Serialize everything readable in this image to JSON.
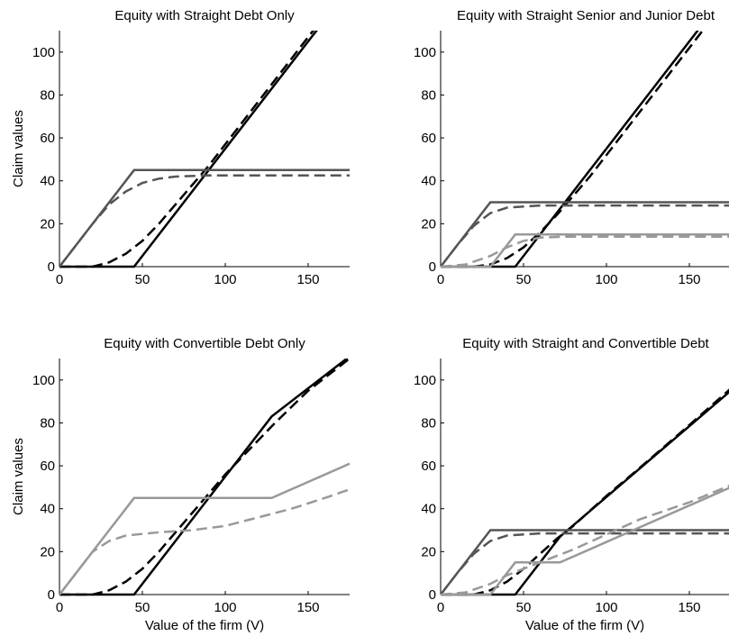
{
  "chart_data": [
    {
      "type": "line",
      "title": "Equity with Straight Debt Only",
      "xlabel": "",
      "ylabel": "Claim values",
      "xlim": [
        0,
        175
      ],
      "ylim": [
        0,
        110
      ],
      "xticks": [
        "0",
        "50",
        "100",
        "150"
      ],
      "yticks": [
        "0",
        "20",
        "40",
        "60",
        "80",
        "100"
      ],
      "series": [
        {
          "style": "solid",
          "color": "#000000",
          "points": [
            [
              0,
              0
            ],
            [
              45,
              0
            ],
            [
              175,
              130
            ]
          ]
        },
        {
          "style": "dashed",
          "color": "#000000",
          "points": [
            [
              0,
              0
            ],
            [
              20,
              0
            ],
            [
              30,
              2
            ],
            [
              40,
              6
            ],
            [
              50,
              12
            ],
            [
              60,
              20
            ],
            [
              70,
              29
            ],
            [
              80,
              38
            ],
            [
              90,
              47
            ],
            [
              100,
              57
            ],
            [
              110,
              67
            ],
            [
              120,
              77
            ],
            [
              140,
              97
            ],
            [
              150,
              107
            ],
            [
              175,
              132
            ]
          ]
        },
        {
          "style": "solid",
          "color": "#555555",
          "points": [
            [
              0,
              0
            ],
            [
              45,
              45
            ],
            [
              175,
              45
            ]
          ]
        },
        {
          "style": "dashed",
          "color": "#555555",
          "points": [
            [
              0,
              0
            ],
            [
              10,
              10
            ],
            [
              20,
              20
            ],
            [
              30,
              29
            ],
            [
              40,
              35
            ],
            [
              50,
              39
            ],
            [
              60,
              41
            ],
            [
              70,
              42
            ],
            [
              90,
              42.5
            ],
            [
              175,
              42.5
            ]
          ]
        }
      ]
    },
    {
      "type": "line",
      "title": "Equity with Straight Senior and Junior Debt",
      "xlabel": "",
      "ylabel": "",
      "xlim": [
        0,
        175
      ],
      "ylim": [
        0,
        110
      ],
      "xticks": [
        "0",
        "50",
        "100",
        "150"
      ],
      "yticks": [
        "0",
        "20",
        "40",
        "60",
        "80",
        "100"
      ],
      "series": [
        {
          "style": "solid",
          "color": "#000000",
          "points": [
            [
              0,
              0
            ],
            [
              45,
              0
            ],
            [
              175,
              130
            ]
          ]
        },
        {
          "style": "dashed",
          "color": "#000000",
          "points": [
            [
              0,
              0
            ],
            [
              20,
              0
            ],
            [
              30,
              1
            ],
            [
              40,
              4
            ],
            [
              50,
              9
            ],
            [
              60,
              16
            ],
            [
              70,
              24
            ],
            [
              80,
              33
            ],
            [
              90,
              42
            ],
            [
              100,
              52
            ],
            [
              120,
              72
            ],
            [
              150,
              102
            ],
            [
              175,
              127
            ]
          ]
        },
        {
          "style": "solid",
          "color": "#555555",
          "points": [
            [
              0,
              0
            ],
            [
              30,
              30
            ],
            [
              175,
              30
            ]
          ]
        },
        {
          "style": "dashed",
          "color": "#555555",
          "points": [
            [
              0,
              0
            ],
            [
              10,
              10
            ],
            [
              20,
              19
            ],
            [
              30,
              25
            ],
            [
              40,
              27.5
            ],
            [
              60,
              28.5
            ],
            [
              175,
              28.5
            ]
          ]
        },
        {
          "style": "solid",
          "color": "#999999",
          "points": [
            [
              0,
              0
            ],
            [
              30,
              0
            ],
            [
              45,
              15
            ],
            [
              175,
              15
            ]
          ]
        },
        {
          "style": "dashed",
          "color": "#999999",
          "points": [
            [
              0,
              0
            ],
            [
              15,
              1
            ],
            [
              30,
              5
            ],
            [
              40,
              9
            ],
            [
              50,
              12
            ],
            [
              60,
              13.5
            ],
            [
              75,
              14
            ],
            [
              175,
              14
            ]
          ]
        }
      ]
    },
    {
      "type": "line",
      "title": "Equity with Convertible Debt Only",
      "xlabel": "Value of the firm (V)",
      "ylabel": "Claim values",
      "xlim": [
        0,
        175
      ],
      "ylim": [
        0,
        110
      ],
      "xticks": [
        "0",
        "50",
        "100",
        "150"
      ],
      "yticks": [
        "0",
        "20",
        "40",
        "60",
        "80",
        "100"
      ],
      "series": [
        {
          "style": "solid",
          "color": "#000000",
          "points": [
            [
              0,
              0
            ],
            [
              45,
              0
            ],
            [
              128,
              83
            ],
            [
              175,
              111
            ]
          ]
        },
        {
          "style": "dashed",
          "color": "#000000",
          "points": [
            [
              0,
              0
            ],
            [
              20,
              0
            ],
            [
              30,
              2
            ],
            [
              40,
              6
            ],
            [
              50,
              12
            ],
            [
              60,
              20
            ],
            [
              70,
              29
            ],
            [
              80,
              38
            ],
            [
              90,
              47
            ],
            [
              100,
              56
            ],
            [
              110,
              64
            ],
            [
              120,
              72
            ],
            [
              130,
              80
            ],
            [
              150,
              95
            ],
            [
              175,
              110
            ]
          ]
        },
        {
          "style": "solid",
          "color": "#999999",
          "points": [
            [
              0,
              0
            ],
            [
              45,
              45
            ],
            [
              128,
              45
            ],
            [
              175,
              61
            ]
          ]
        },
        {
          "style": "dashed",
          "color": "#999999",
          "points": [
            [
              0,
              0
            ],
            [
              10,
              10
            ],
            [
              20,
              20
            ],
            [
              30,
              25
            ],
            [
              40,
              27.5
            ],
            [
              60,
              29
            ],
            [
              80,
              30
            ],
            [
              100,
              32
            ],
            [
              120,
              36
            ],
            [
              140,
              40
            ],
            [
              160,
              45
            ],
            [
              175,
              49
            ]
          ]
        }
      ]
    },
    {
      "type": "line",
      "title": "Equity with Straight and Convertible Debt",
      "xlabel": "Value of the firm (V)",
      "ylabel": "",
      "xlim": [
        0,
        175
      ],
      "ylim": [
        0,
        110
      ],
      "xticks": [
        "0",
        "50",
        "100",
        "150"
      ],
      "yticks": [
        "0",
        "20",
        "40",
        "60",
        "80",
        "100"
      ],
      "series": [
        {
          "style": "solid",
          "color": "#000000",
          "points": [
            [
              0,
              0
            ],
            [
              45,
              0
            ],
            [
              72,
              27
            ],
            [
              175,
              95
            ]
          ]
        },
        {
          "style": "dashed",
          "color": "#000000",
          "points": [
            [
              0,
              0
            ],
            [
              20,
              0
            ],
            [
              30,
              2
            ],
            [
              40,
              6
            ],
            [
              50,
              12
            ],
            [
              60,
              19
            ],
            [
              70,
              26
            ],
            [
              80,
              32
            ],
            [
              100,
              46
            ],
            [
              120,
              59
            ],
            [
              150,
              79
            ],
            [
              175,
              96
            ]
          ]
        },
        {
          "style": "solid",
          "color": "#555555",
          "points": [
            [
              0,
              0
            ],
            [
              30,
              30
            ],
            [
              175,
              30
            ]
          ]
        },
        {
          "style": "dashed",
          "color": "#555555",
          "points": [
            [
              0,
              0
            ],
            [
              10,
              10
            ],
            [
              20,
              19
            ],
            [
              30,
              25
            ],
            [
              40,
              27.5
            ],
            [
              60,
              28.5
            ],
            [
              175,
              28.5
            ]
          ]
        },
        {
          "style": "solid",
          "color": "#999999",
          "points": [
            [
              0,
              0
            ],
            [
              30,
              0
            ],
            [
              45,
              15
            ],
            [
              72,
              15
            ],
            [
              175,
              50
            ]
          ]
        },
        {
          "style": "dashed",
          "color": "#999999",
          "points": [
            [
              0,
              0
            ],
            [
              15,
              1
            ],
            [
              30,
              5
            ],
            [
              40,
              9
            ],
            [
              50,
              12
            ],
            [
              60,
              15
            ],
            [
              70,
              18
            ],
            [
              80,
              21
            ],
            [
              100,
              28
            ],
            [
              120,
              35
            ],
            [
              150,
              43
            ],
            [
              175,
              51
            ]
          ]
        }
      ]
    }
  ]
}
